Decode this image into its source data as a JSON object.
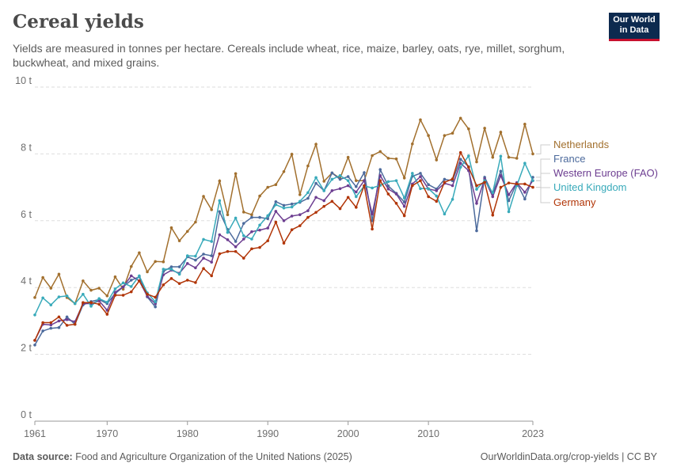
{
  "header": {
    "title": "Cereal yields",
    "subtitle": "Yields are measured in tonnes per hectare. Cereals include wheat, rice, maize, barley, oats, rye, millet, sorghum, buckwheat, and mixed grains."
  },
  "logo": {
    "line1": "Our World",
    "line2": "in Data",
    "bg_color": "#0d2a4f",
    "accent_color": "#c8102e"
  },
  "footer": {
    "source_label": "Data source:",
    "source_text": "Food and Agriculture Organization of the United Nations (2025)",
    "link_text": "OurWorldinData.org/crop-yields | CC BY"
  },
  "chart_data": {
    "type": "line",
    "x": [
      1961,
      1962,
      1963,
      1964,
      1965,
      1966,
      1967,
      1968,
      1969,
      1970,
      1971,
      1972,
      1973,
      1974,
      1975,
      1976,
      1977,
      1978,
      1979,
      1980,
      1981,
      1982,
      1983,
      1984,
      1985,
      1986,
      1987,
      1988,
      1989,
      1990,
      1991,
      1992,
      1993,
      1994,
      1995,
      1996,
      1997,
      1998,
      1999,
      2000,
      2001,
      2002,
      2003,
      2004,
      2005,
      2006,
      2007,
      2008,
      2009,
      2010,
      2011,
      2012,
      2013,
      2014,
      2015,
      2016,
      2017,
      2018,
      2019,
      2020,
      2021,
      2022,
      2023
    ],
    "x_tick_labels": [
      "1961",
      "1970",
      "1980",
      "1990",
      "2000",
      "2010",
      "2023"
    ],
    "x_ticks": [
      1961,
      1970,
      1980,
      1990,
      2000,
      2010,
      2023
    ],
    "y_ticks": [
      0,
      2,
      4,
      6,
      8,
      10
    ],
    "y_tick_labels": [
      "0 t",
      "2 t",
      "4 t",
      "6 t",
      "8 t",
      "10 t"
    ],
    "ylim": [
      0,
      10
    ],
    "grid": true,
    "series": [
      {
        "name": "Netherlands",
        "color": "#a2702e",
        "values": [
          3.7,
          4.3,
          3.98,
          4.4,
          3.7,
          3.52,
          4.2,
          3.92,
          3.98,
          3.75,
          4.32,
          3.95,
          4.63,
          5.04,
          4.47,
          4.78,
          4.77,
          5.79,
          5.4,
          5.68,
          5.96,
          6.73,
          6.33,
          7.19,
          6.18,
          7.41,
          6.26,
          6.18,
          6.74,
          7.0,
          7.08,
          7.47,
          7.99,
          6.78,
          7.64,
          8.29,
          7.18,
          7.43,
          7.27,
          7.9,
          7.2,
          7.2,
          7.95,
          8.07,
          7.87,
          7.85,
          7.28,
          8.3,
          9.02,
          8.55,
          7.82,
          8.55,
          8.62,
          9.07,
          8.75,
          7.76,
          8.77,
          7.9,
          8.65,
          7.9,
          7.87,
          8.89,
          8.0
        ]
      },
      {
        "name": "France",
        "color": "#4c6a9c",
        "values": [
          2.28,
          2.7,
          2.78,
          2.8,
          3.12,
          2.9,
          3.48,
          3.58,
          3.64,
          3.52,
          3.82,
          4.02,
          4.22,
          4.32,
          3.72,
          3.42,
          4.48,
          4.62,
          4.62,
          4.92,
          4.82,
          5.0,
          4.95,
          6.27,
          5.74,
          5.38,
          5.92,
          6.1,
          6.1,
          6.06,
          6.57,
          6.46,
          6.5,
          6.55,
          6.67,
          7.12,
          6.9,
          7.43,
          7.24,
          7.32,
          7.02,
          7.44,
          6.0,
          7.53,
          7.04,
          6.82,
          6.56,
          7.33,
          7.42,
          7.08,
          6.95,
          7.24,
          7.2,
          7.84,
          7.62,
          5.7,
          7.3,
          6.8,
          7.48,
          6.6,
          7.13,
          6.65,
          7.3
        ]
      },
      {
        "name": "Western Europe (FAO)",
        "color": "#6d3e91",
        "values": [
          2.42,
          2.9,
          2.88,
          3.0,
          3.04,
          2.98,
          3.52,
          3.52,
          3.6,
          3.32,
          3.86,
          4.02,
          4.35,
          4.2,
          3.74,
          3.52,
          4.38,
          4.52,
          4.43,
          4.72,
          4.59,
          4.88,
          4.76,
          5.58,
          5.43,
          5.22,
          5.45,
          5.67,
          5.72,
          5.78,
          6.28,
          6.0,
          6.14,
          6.18,
          6.3,
          6.7,
          6.6,
          6.9,
          6.96,
          7.05,
          6.86,
          7.2,
          6.2,
          7.35,
          6.95,
          6.8,
          6.43,
          7.1,
          7.32,
          6.95,
          6.9,
          7.12,
          7.05,
          7.72,
          7.5,
          6.52,
          7.25,
          6.72,
          7.35,
          6.78,
          7.14,
          6.85,
          7.2
        ]
      },
      {
        "name": "United Kingdom",
        "color": "#38aaba",
        "values": [
          3.18,
          3.69,
          3.48,
          3.72,
          3.75,
          3.52,
          3.8,
          3.44,
          3.67,
          3.56,
          3.96,
          4.14,
          4.03,
          4.35,
          3.84,
          3.57,
          4.55,
          4.55,
          4.4,
          4.95,
          4.94,
          5.44,
          5.38,
          6.6,
          5.65,
          6.08,
          5.55,
          5.45,
          5.87,
          6.15,
          6.48,
          6.38,
          6.41,
          6.58,
          6.84,
          7.29,
          6.9,
          7.24,
          7.35,
          7.2,
          6.72,
          7.04,
          6.98,
          7.06,
          7.17,
          7.2,
          6.68,
          7.42,
          6.96,
          6.96,
          6.74,
          6.2,
          6.64,
          7.6,
          7.94,
          6.94,
          7.2,
          6.84,
          7.93,
          6.27,
          7.05,
          7.72,
          7.2
        ]
      },
      {
        "name": "Germany",
        "color": "#b13507",
        "values": [
          2.42,
          2.95,
          2.95,
          3.12,
          2.87,
          2.9,
          3.55,
          3.55,
          3.5,
          3.2,
          3.77,
          3.77,
          3.87,
          4.2,
          3.8,
          3.71,
          4.08,
          4.27,
          4.12,
          4.22,
          4.15,
          4.57,
          4.35,
          5.01,
          5.08,
          5.08,
          4.88,
          5.16,
          5.2,
          5.4,
          5.96,
          5.33,
          5.73,
          5.85,
          6.1,
          6.25,
          6.43,
          6.58,
          6.36,
          6.7,
          6.4,
          7.05,
          5.75,
          7.2,
          6.8,
          6.52,
          6.15,
          7.05,
          7.2,
          6.72,
          6.58,
          7.15,
          7.25,
          8.04,
          7.6,
          7.05,
          7.15,
          6.17,
          7.0,
          7.13,
          7.1,
          7.1,
          7.0
        ]
      }
    ],
    "legend_order": [
      "Netherlands",
      "France",
      "Western Europe (FAO)",
      "United Kingdom",
      "Germany"
    ]
  }
}
